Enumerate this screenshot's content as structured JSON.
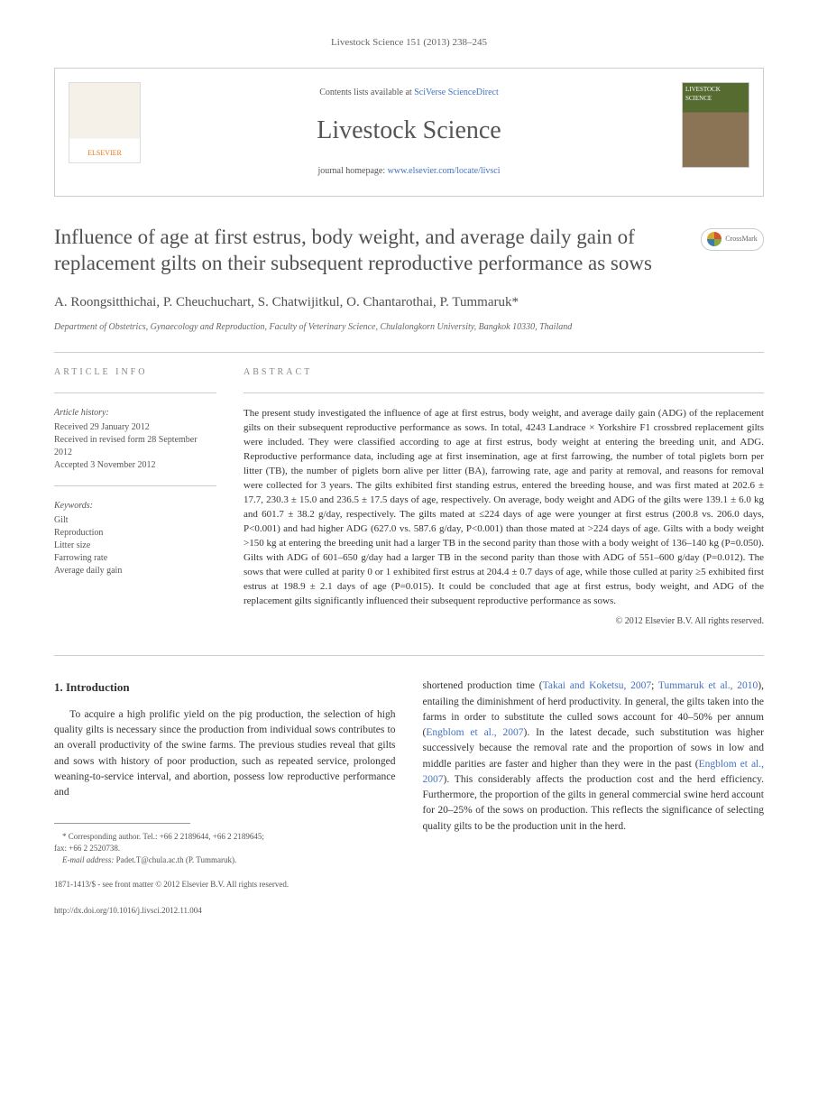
{
  "header": {
    "meta_line": "Livestock Science 151 (2013) 238–245",
    "contents_prefix": "Contents lists available at ",
    "contents_link": "SciVerse ScienceDirect",
    "journal_name": "Livestock Science",
    "homepage_prefix": "journal homepage: ",
    "homepage_link": "www.elsevier.com/locate/livsci",
    "elsevier_label": "ELSEVIER",
    "cover_label": "LIVESTOCK SCIENCE"
  },
  "crossmark": {
    "label": "CrossMark"
  },
  "article": {
    "title": "Influence of age at first estrus, body weight, and average daily gain of replacement gilts on their subsequent reproductive performance as sows",
    "authors": "A. Roongsitthichai, P. Cheuchuchart, S. Chatwijitkul, O. Chantarothai, P. Tummaruk*",
    "affiliation": "Department of Obstetrics, Gynaecology and Reproduction, Faculty of Veterinary Science, Chulalongkorn University, Bangkok 10330, Thailand"
  },
  "info": {
    "heading": "ARTICLE INFO",
    "history_label": "Article history:",
    "received": "Received 29 January 2012",
    "revised": "Received in revised form 28 September 2012",
    "accepted": "Accepted 3 November 2012",
    "keywords_label": "Keywords:",
    "keywords": [
      "Gilt",
      "Reproduction",
      "Litter size",
      "Farrowing rate",
      "Average daily gain"
    ]
  },
  "abstract": {
    "heading": "ABSTRACT",
    "text": "The present study investigated the influence of age at first estrus, body weight, and average daily gain (ADG) of the replacement gilts on their subsequent reproductive performance as sows. In total, 4243 Landrace × Yorkshire F1 crossbred replacement gilts were included. They were classified according to age at first estrus, body weight at entering the breeding unit, and ADG. Reproductive performance data, including age at first insemination, age at first farrowing, the number of total piglets born per litter (TB), the number of piglets born alive per litter (BA), farrowing rate, age and parity at removal, and reasons for removal were collected for 3 years. The gilts exhibited first standing estrus, entered the breeding house, and was first mated at 202.6 ± 17.7, 230.3 ± 15.0 and 236.5 ± 17.5 days of age, respectively. On average, body weight and ADG of the gilts were 139.1 ± 6.0 kg and 601.7 ± 38.2 g/day, respectively. The gilts mated at ≤224 days of age were younger at first estrus (200.8 vs. 206.0 days, P<0.001) and had higher ADG (627.0 vs. 587.6 g/day, P<0.001) than those mated at >224 days of age. Gilts with a body weight >150 kg at entering the breeding unit had a larger TB in the second parity than those with a body weight of 136–140 kg (P=0.050). Gilts with ADG of 601–650 g/day had a larger TB in the second parity than those with ADG of 551–600 g/day (P=0.012). The sows that were culled at parity 0 or 1 exhibited first estrus at 204.4 ± 0.7 days of age, while those culled at parity ≥5 exhibited first estrus at 198.9 ± 2.1 days of age (P=0.015). It could be concluded that age at first estrus, body weight, and ADG of the replacement gilts significantly influenced their subsequent reproductive performance as sows.",
    "copyright": "© 2012 Elsevier B.V. All rights reserved."
  },
  "body": {
    "section_heading": "1. Introduction",
    "col1_p1": "To acquire a high prolific yield on the pig production, the selection of high quality gilts is necessary since the production from individual sows contributes to an overall productivity of the swine farms. The previous studies reveal that gilts and sows with history of poor production, such as repeated service, prolonged weaning-to-service interval, and abortion, possess low reproductive performance and",
    "col2_p1_a": "shortened production time (",
    "col2_cite1": "Takai and Koketsu, 2007",
    "col2_p1_b": "; ",
    "col2_cite2": "Tummaruk et al., 2010",
    "col2_p1_c": "), entailing the diminishment of herd productivity. In general, the gilts taken into the farms in order to substitute the culled sows account for 40–50% per annum (",
    "col2_cite3": "Engblom et al., 2007",
    "col2_p1_d": "). In the latest decade, such substitution was higher successively because the removal rate and the proportion of sows in low and middle parities are faster and higher than they were in the past (",
    "col2_cite4": "Engblom et al., 2007",
    "col2_p1_e": "). This considerably affects the production cost and the herd efficiency. Furthermore, the proportion of the gilts in general commercial swine herd account for 20–25% of the sows on production. This reflects the significance of selecting quality gilts to be the production unit in the herd."
  },
  "footnote": {
    "corresponding_a": "* Corresponding author. Tel.: +66 2 2189644, +66 2 2189645;",
    "corresponding_b": "fax: +66 2 2520738.",
    "email_label": "E-mail address:",
    "email": " Padet.T@chula.ac.th (P. Tummaruk)."
  },
  "footer": {
    "issn_line": "1871-1413/$ - see front matter © 2012 Elsevier B.V. All rights reserved.",
    "doi_line": "http://dx.doi.org/10.1016/j.livsci.2012.11.004"
  }
}
